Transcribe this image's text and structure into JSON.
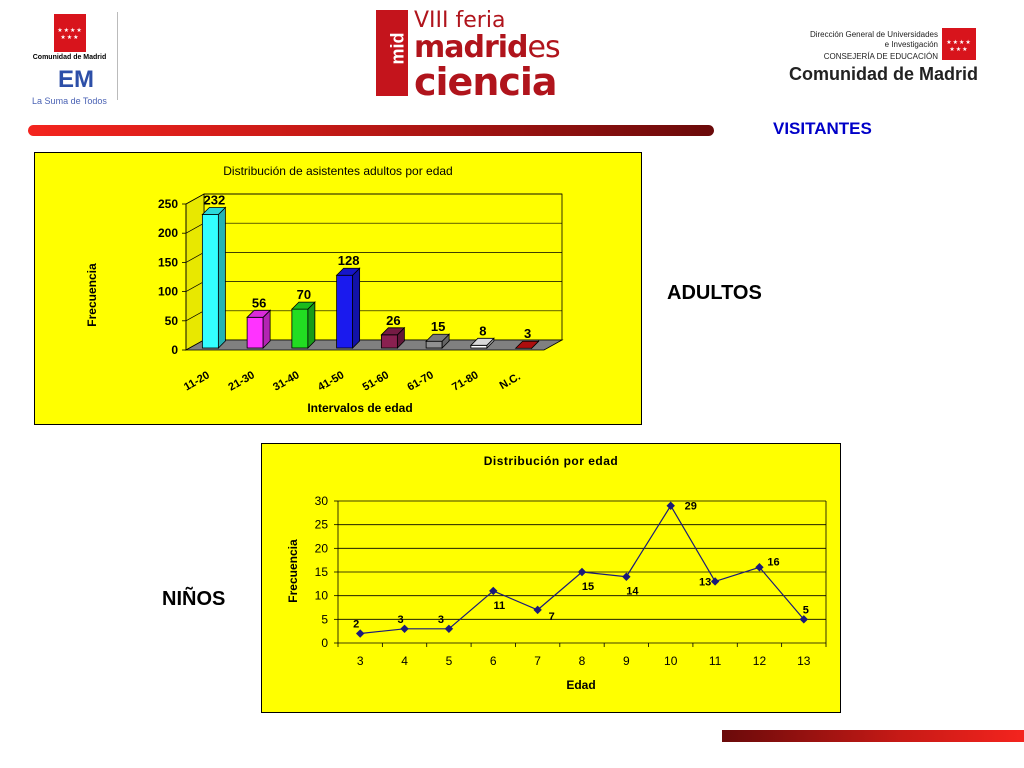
{
  "header": {
    "left_logo": {
      "name": "Comunidad de Madrid",
      "tagline": "La Suma de Todos",
      "em_mark": "EM"
    },
    "center_logo": {
      "mark": "mid",
      "line1": "VIII feria",
      "line2_main": "madrid",
      "line2_suffix": "es",
      "line3": "ciencia"
    },
    "right_logo": {
      "line1": "Dirección General de Universidades",
      "line2": "e Investigación",
      "line3": "CONSEJERÍA DE EDUCACIÓN",
      "line4": "Comunidad de Madrid"
    },
    "page_title": "VISITANTES"
  },
  "labels": {
    "adultos": "ADULTOS",
    "ninos": "NIÑOS"
  },
  "colors": {
    "chart_bg": "#ffff00",
    "accent_red": "#c81a16",
    "title_blue": "#0000c8",
    "line_series": "#1a1a7a"
  },
  "chart_data": [
    {
      "type": "bar",
      "title": "Distribución de asistentes adultos por edad",
      "xlabel": "Intervalos de edad",
      "ylabel": "Frecuencia",
      "categories": [
        "11-20",
        "21-30",
        "31-40",
        "41-50",
        "51-60",
        "61-70",
        "71-80",
        "N.C."
      ],
      "values": [
        232,
        56,
        70,
        128,
        26,
        15,
        8,
        3
      ],
      "bar_colors": [
        "#33ffff",
        "#ff33ff",
        "#22dd22",
        "#1a1aee",
        "#8a2050",
        "#909090",
        "#ffffff",
        "#cc1111"
      ],
      "ylim": [
        0,
        250
      ],
      "yticks": [
        0,
        50,
        100,
        150,
        200,
        250
      ],
      "grid": true,
      "style": "3d"
    },
    {
      "type": "line",
      "title": "Distribución por edad",
      "xlabel": "Edad",
      "ylabel": "Frecuencia",
      "x": [
        3,
        4,
        5,
        6,
        7,
        8,
        9,
        10,
        11,
        12,
        13
      ],
      "values": [
        2,
        3,
        3,
        11,
        7,
        15,
        14,
        29,
        13,
        16,
        5
      ],
      "ylim": [
        0,
        30
      ],
      "yticks": [
        0,
        5,
        10,
        15,
        20,
        25,
        30
      ],
      "grid": true
    }
  ]
}
